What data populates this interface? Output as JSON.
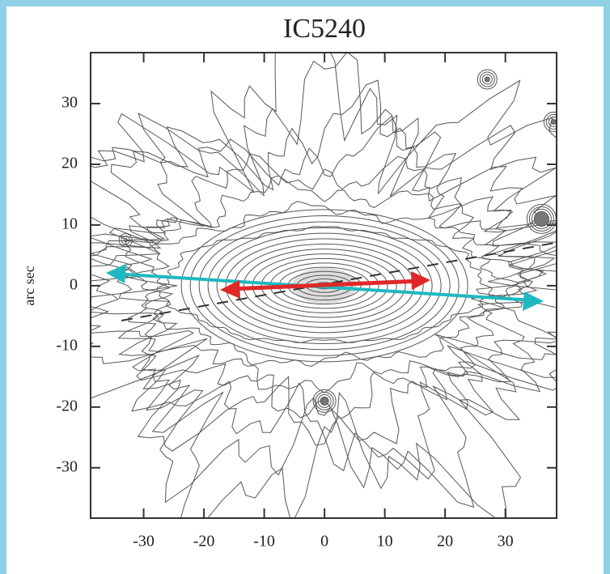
{
  "chart_data": {
    "type": "contour",
    "title": "IC5240",
    "ylabel": "arc sec",
    "xlim": [
      -38.8,
      38.5
    ],
    "ylim": [
      -38.3,
      38.4
    ],
    "xticks": [
      -30,
      -20,
      -10,
      0,
      10,
      20,
      30
    ],
    "yticks": [
      -30,
      -20,
      -10,
      0,
      10,
      20,
      30
    ]
  }
}
